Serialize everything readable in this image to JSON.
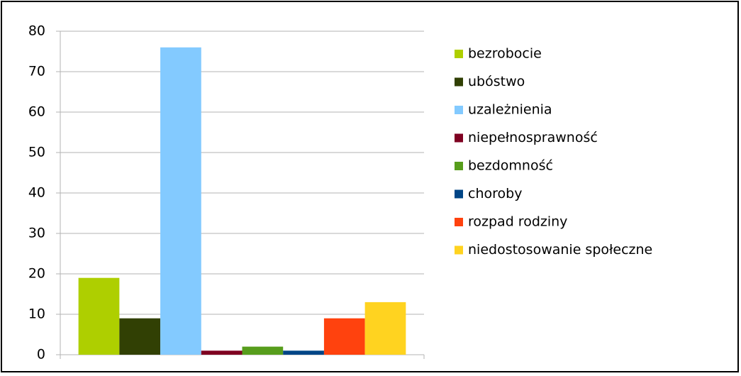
{
  "chart_data": {
    "type": "bar",
    "categories": [
      null
    ],
    "series": [
      {
        "name": "bezrobocie",
        "color": "#aecf00",
        "values": [
          19
        ]
      },
      {
        "name": "ubóstwo",
        "color": "#314004",
        "values": [
          9
        ]
      },
      {
        "name": "uzależnienia",
        "color": "#83caff",
        "values": [
          76
        ]
      },
      {
        "name": "niepełnosprawność",
        "color": "#7e0021",
        "values": [
          1
        ]
      },
      {
        "name": "bezdomność",
        "color": "#579d1c",
        "values": [
          2
        ]
      },
      {
        "name": "choroby",
        "color": "#004586",
        "values": [
          1
        ]
      },
      {
        "name": "rozpad rodziny",
        "color": "#ff420e",
        "values": [
          9
        ]
      },
      {
        "name": "niedostosowanie społeczne",
        "color": "#ffd320",
        "values": [
          13
        ]
      }
    ],
    "ylim": [
      0,
      80
    ],
    "yticks": [
      0,
      10,
      20,
      30,
      40,
      50,
      60,
      70,
      80
    ],
    "grid": true
  }
}
